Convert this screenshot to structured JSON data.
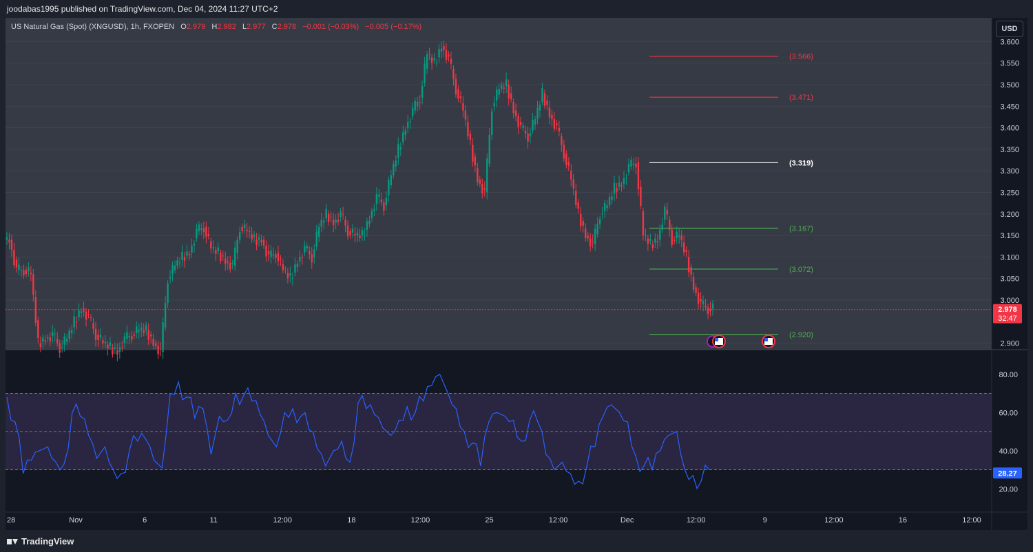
{
  "header": {
    "published_text": "joodabas1995 published on TradingView.com, Dec 04, 2024 11:27 UTC+2"
  },
  "legend": {
    "symbol": "US Natural Gas (Spot) (XNGUSD), 1h, FXOPEN",
    "o_label": "O",
    "o_value": "2.979",
    "h_label": "H",
    "h_value": "2.982",
    "l_label": "L",
    "l_value": "2.977",
    "c_label": "C",
    "c_value": "2.978",
    "change": "−0.001 (−0.03%)",
    "change2": "−0.005 (−0.17%)"
  },
  "currency_button": "USD",
  "price_axis": {
    "ticks": [
      "3.600",
      "3.550",
      "3.500",
      "3.450",
      "3.400",
      "3.350",
      "3.300",
      "3.250",
      "3.200",
      "3.150",
      "3.100",
      "3.050",
      "3.000",
      "2.900"
    ],
    "current_price": "2.978",
    "countdown": "32:47",
    "range": [
      2.885,
      3.655
    ]
  },
  "levels": [
    {
      "label": "(3.566)",
      "value": 3.566,
      "color": "#f23645"
    },
    {
      "label": "(3.471)",
      "value": 3.471,
      "color": "#f23645"
    },
    {
      "label": "(3.319)",
      "value": 3.319,
      "color": "#ffffff"
    },
    {
      "label": "(3.167)",
      "value": 3.167,
      "color": "#4caf50"
    },
    {
      "label": "(3.072)",
      "value": 3.072,
      "color": "#4caf50"
    },
    {
      "label": "(2.920)",
      "value": 2.92,
      "color": "#4caf50"
    }
  ],
  "rsi": {
    "ticks": [
      "80.00",
      "60.00",
      "40.00",
      "20.00"
    ],
    "current_value": "28.27",
    "upper_band": 70,
    "mid_band": 50,
    "lower_band": 30,
    "line_color": "#2962ff"
  },
  "time_axis": {
    "ticks": [
      "28",
      "Nov",
      "6",
      "11",
      "12:00",
      "18",
      "12:00",
      "25",
      "12:00",
      "Dec",
      "12:00",
      "9",
      "12:00",
      "16",
      "12:00"
    ]
  },
  "colors": {
    "bg": "#131722",
    "up": "#089981",
    "down": "#f23645",
    "grid": "#2a2e39",
    "panel": "#363a45"
  },
  "footer": {
    "brand": "TradingView"
  },
  "chart_data": {
    "type": "line",
    "title": "US Natural Gas (Spot) (XNGUSD), 1h, FXOPEN",
    "series": [
      {
        "name": "XNGUSD",
        "values": [
          3.14,
          3.07,
          3.07,
          3.06,
          2.9,
          2.91,
          2.92,
          2.89,
          2.91,
          2.95,
          2.98,
          2.96,
          2.92,
          2.9,
          2.89,
          2.88,
          2.91,
          2.92,
          2.93,
          2.93,
          2.9,
          2.88,
          3.05,
          3.08,
          3.1,
          3.11,
          3.16,
          3.17,
          3.12,
          3.11,
          3.09,
          3.08,
          3.17,
          3.16,
          3.14,
          3.14,
          3.1,
          3.11,
          3.07,
          3.05,
          3.09,
          3.12,
          3.1,
          3.17,
          3.2,
          3.18,
          3.2,
          3.16,
          3.15,
          3.15,
          3.19,
          3.24,
          3.22,
          3.29,
          3.35,
          3.4,
          3.44,
          3.47,
          3.57,
          3.55,
          3.59,
          3.56,
          3.49,
          3.44,
          3.36,
          3.28,
          3.25,
          3.45,
          3.49,
          3.5,
          3.44,
          3.4,
          3.38,
          3.42,
          3.48,
          3.43,
          3.4,
          3.34,
          3.28,
          3.2,
          3.15,
          3.13,
          3.2,
          3.22,
          3.26,
          3.27,
          3.31,
          3.32,
          3.15,
          3.13,
          3.14,
          3.21,
          3.14,
          3.15,
          3.1,
          3.03,
          2.99,
          2.98,
          2.98
        ]
      },
      {
        "name": "RSI",
        "values": [
          68,
          55,
          28,
          35,
          40,
          42,
          34,
          33,
          60,
          58,
          48,
          36,
          42,
          30,
          28,
          40,
          45,
          46,
          35,
          31,
          70,
          76,
          68,
          57,
          62,
          38,
          58,
          56,
          70,
          69,
          66,
          59,
          48,
          42,
          60,
          62,
          58,
          51,
          41,
          32,
          40,
          45,
          34,
          65,
          62,
          59,
          52,
          48,
          56,
          63,
          60,
          66,
          74,
          80,
          70,
          62,
          50,
          44,
          32,
          55,
          60,
          58,
          56,
          45,
          56,
          55,
          38,
          30,
          34,
          28,
          24,
          32,
          42,
          58,
          64,
          60,
          55,
          37,
          32,
          30,
          40,
          48,
          50,
          30,
          27,
          24,
          30
        ]
      }
    ],
    "ylim": [
      2.885,
      3.655
    ]
  }
}
